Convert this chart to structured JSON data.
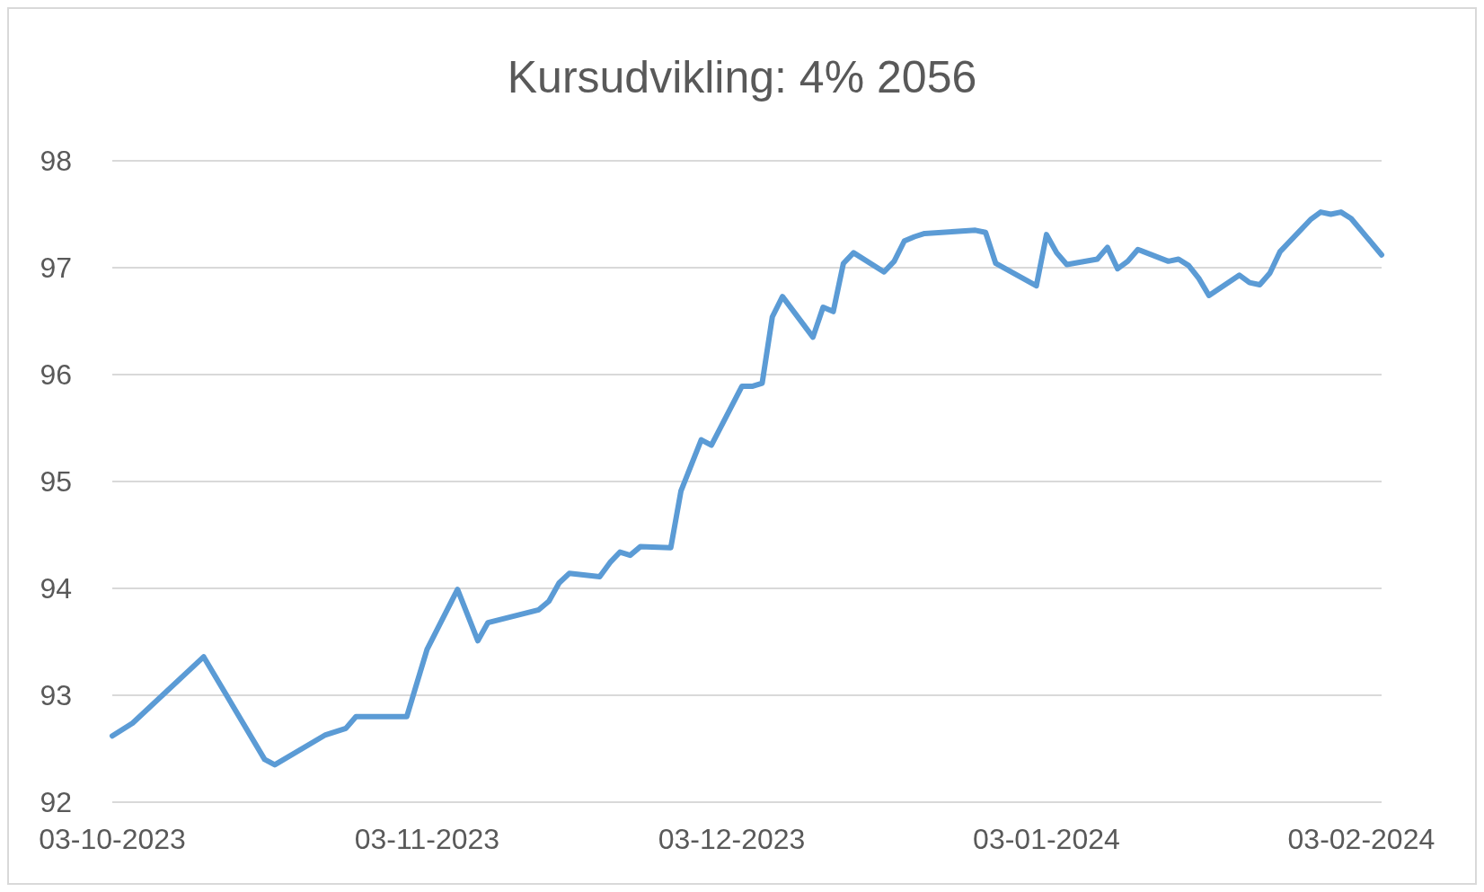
{
  "chart_data": {
    "type": "line",
    "title": "Kursudvikling: 4% 2056",
    "x": [
      "2023-10-03",
      "2023-10-05",
      "2023-10-12",
      "2023-10-18",
      "2023-10-19",
      "2023-10-24",
      "2023-10-26",
      "2023-10-27",
      "2023-11-01",
      "2023-11-03",
      "2023-11-06",
      "2023-11-08",
      "2023-11-09",
      "2023-11-14",
      "2023-11-15",
      "2023-11-16",
      "2023-11-17",
      "2023-11-20",
      "2023-11-21",
      "2023-11-22",
      "2023-11-23",
      "2023-11-24",
      "2023-11-27",
      "2023-11-28",
      "2023-11-29",
      "2023-11-30",
      "2023-12-01",
      "2023-12-04",
      "2023-12-05",
      "2023-12-06",
      "2023-12-07",
      "2023-12-08",
      "2023-12-11",
      "2023-12-12",
      "2023-12-13",
      "2023-12-14",
      "2023-12-15",
      "2023-12-18",
      "2023-12-19",
      "2023-12-20",
      "2023-12-21",
      "2023-12-22",
      "2023-12-27",
      "2023-12-28",
      "2023-12-29",
      "2024-01-02",
      "2024-01-03",
      "2024-01-04",
      "2024-01-05",
      "2024-01-08",
      "2024-01-09",
      "2024-01-10",
      "2024-01-11",
      "2024-01-12",
      "2024-01-15",
      "2024-01-16",
      "2024-01-17",
      "2024-01-18",
      "2024-01-19",
      "2024-01-22",
      "2024-01-23",
      "2024-01-24",
      "2024-01-25",
      "2024-01-26",
      "2024-01-29",
      "2024-01-30",
      "2024-01-31",
      "2024-02-01",
      "2024-02-02",
      "2024-02-05"
    ],
    "series": [
      {
        "color": "#5b9bd5",
        "values": [
          92.62,
          92.74,
          93.36,
          92.4,
          92.35,
          92.63,
          92.69,
          92.8,
          92.8,
          93.43,
          93.99,
          93.51,
          93.68,
          93.8,
          93.88,
          94.05,
          94.14,
          94.11,
          94.24,
          94.34,
          94.31,
          94.39,
          94.38,
          94.91,
          95.15,
          95.39,
          95.34,
          95.89,
          95.89,
          95.92,
          96.54,
          96.73,
          96.35,
          96.63,
          96.59,
          97.04,
          97.14,
          96.96,
          97.06,
          97.25,
          97.29,
          97.32,
          97.35,
          97.33,
          97.04,
          96.83,
          97.31,
          97.14,
          97.03,
          97.08,
          97.19,
          96.99,
          97.06,
          97.17,
          97.06,
          97.08,
          97.02,
          96.9,
          96.74,
          96.93,
          96.86,
          96.84,
          96.95,
          97.15,
          97.45,
          97.52,
          97.5,
          97.52,
          97.46,
          97.12
        ]
      }
    ],
    "xlim": [
      "2023-10-03",
      "2024-02-05"
    ],
    "xticks": [
      {
        "value": "2023-10-03",
        "label": "03-10-2023"
      },
      {
        "value": "2023-11-03",
        "label": "03-11-2023"
      },
      {
        "value": "2023-12-03",
        "label": "03-12-2023"
      },
      {
        "value": "2024-01-03",
        "label": "03-01-2024"
      },
      {
        "value": "2024-02-03",
        "label": "03-02-2024"
      }
    ],
    "ylim": [
      92,
      98
    ],
    "yticks": [
      92,
      93,
      94,
      95,
      96,
      97,
      98
    ],
    "grid": "y",
    "marker": "none",
    "line_style": "solid"
  }
}
